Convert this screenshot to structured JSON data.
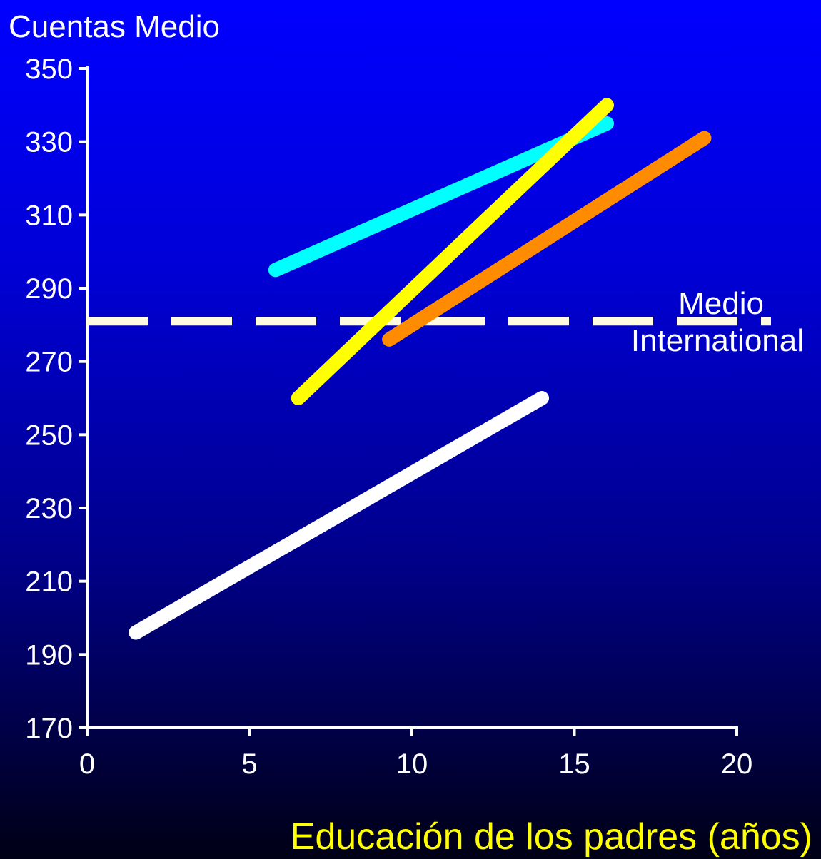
{
  "chart_data": {
    "type": "line",
    "ylabel": "Cuentas Medio",
    "xlabel": "Educación de los padres (años)",
    "xlim": [
      0,
      20
    ],
    "ylim": [
      170,
      350
    ],
    "xticks": [
      0,
      5,
      10,
      15,
      20
    ],
    "yticks": [
      170,
      190,
      210,
      230,
      250,
      270,
      290,
      310,
      330,
      350
    ],
    "grid": false,
    "series": [
      {
        "color": "#00ffff",
        "x": [
          5.8,
          16
        ],
        "y": [
          295,
          335
        ]
      },
      {
        "color": "#ffff00",
        "x": [
          6.5,
          16
        ],
        "y": [
          260,
          340
        ]
      },
      {
        "color": "#ff8c00",
        "x": [
          9.3,
          19
        ],
        "y": [
          276,
          331
        ]
      },
      {
        "color": "#ffffff",
        "x": [
          1.5,
          14
        ],
        "y": [
          196,
          260
        ]
      }
    ],
    "reference_line": {
      "y": 281,
      "style": "dashed",
      "color": "#fffbe0",
      "label_line1": "Medio",
      "label_line2": "International"
    },
    "colors": {
      "xlabel": "#ffff00",
      "text": "#ffffff"
    }
  }
}
